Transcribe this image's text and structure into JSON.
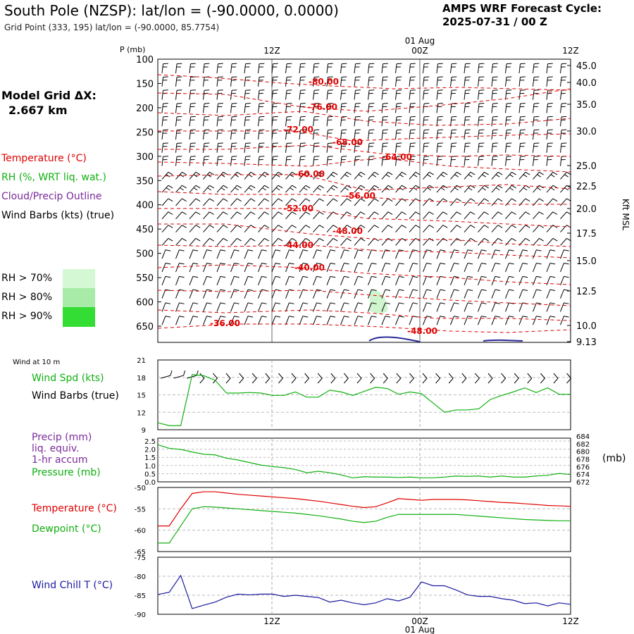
{
  "header": {
    "title": "South Pole (NZSP):  lat/lon = (-90.0000, 0.0000)",
    "subtitle": "Grid Point (333, 195) lat/lon = (-90.0000, 85.7754)",
    "cycle_label": "AMPS WRF Forecast Cycle:",
    "cycle_value": "2025-07-31 / 00  Z"
  },
  "side": {
    "grid_label": "Model Grid ΔX:",
    "grid_value": "2.667 km",
    "legend": [
      {
        "text": "Temperature (°C)",
        "color": "#e00000"
      },
      {
        "text": "RH (%, WRT liq. wat.)",
        "color": "#10b010"
      },
      {
        "text": "Cloud/Precip Outline",
        "color": "#7a2a9a"
      },
      {
        "text": "Wind Barbs (kts) (true)",
        "color": "#000000"
      }
    ],
    "rh_boxes": [
      {
        "label": "RH > 70%",
        "color": "#d4f7d4"
      },
      {
        "label": "RH > 80%",
        "color": "#a8eba8"
      },
      {
        "label": "RH > 90%",
        "color": "#33dd33"
      }
    ],
    "wind10_title": "Wind at 10 m",
    "wind_spd_label": "Wind Spd (kts)",
    "wind_barb_label": "Wind Barbs (true)",
    "precip_label1": "Precip (mm)",
    "precip_label2": "liq. equiv.",
    "precip_label3": "1-hr accum",
    "pressure_label": "Pressure (mb)",
    "pressure_unit": "(mb)",
    "temp_label": "Temperature (°C)",
    "dew_label": "Dewpoint (°C)",
    "chill_label": "Wind Chill T (°C)"
  },
  "chart_data": [
    {
      "type": "line",
      "name": "upper-air cross section",
      "x_ticks_top": [
        "12Z",
        "00Z",
        "12Z"
      ],
      "date_label": "01 Aug",
      "ylabel": "P (mb)",
      "y_ticks": [
        100,
        150,
        200,
        250,
        300,
        350,
        400,
        450,
        500,
        550,
        600,
        650
      ],
      "right_label": "Kft MSL",
      "right_ticks": [
        "45.0",
        "40.0",
        "35.0",
        "30.0",
        "25.0",
        "22.5",
        "20.0",
        "17.5",
        "15.0",
        "12.5",
        "10.0",
        "9.13"
      ],
      "isotherm_labels": [
        "-80.00",
        "-76.00",
        "-72.00",
        "-68.00",
        "-64.00",
        "-60.00",
        "-56.00",
        "-52.00",
        "-48.00",
        "-44.00",
        "-40.00",
        "-36.00",
        "-48.00"
      ]
    },
    {
      "type": "line",
      "name": "Wind Spd (kts)",
      "ylim": [
        9,
        21
      ],
      "y_ticks": [
        9,
        12,
        15,
        18,
        21
      ],
      "x": [
        0,
        1,
        2,
        3,
        4,
        5,
        6,
        7,
        8,
        9,
        10,
        11,
        12,
        13,
        14,
        15,
        16,
        17,
        18,
        19,
        20,
        21,
        22,
        23,
        24,
        25,
        26,
        27,
        28,
        29,
        30,
        31,
        32,
        33,
        34,
        35,
        36
      ],
      "values": [
        10.2,
        9.7,
        9.7,
        18.5,
        18.3,
        17.5,
        15.3,
        15.3,
        15.4,
        15.3,
        14.9,
        14.9,
        15.5,
        14.6,
        14.6,
        15.8,
        15.5,
        14.9,
        15.6,
        16.3,
        16.1,
        15.1,
        15.5,
        15.2,
        13.6,
        12.0,
        12.4,
        12.4,
        12.6,
        14.2,
        14.9,
        15.5,
        16.2,
        15.4,
        16.2,
        15.1,
        15.1
      ]
    },
    {
      "type": "line",
      "name": "Pressure (mb)",
      "left_ticks": [
        "0.0",
        "0.5",
        "1.0",
        "1.5",
        "2.0",
        "2.5"
      ],
      "right_ticks": [
        "672",
        "674",
        "676",
        "678",
        "680",
        "682",
        "684"
      ],
      "ylim": [
        672,
        684
      ],
      "x": [
        0,
        1,
        2,
        3,
        4,
        5,
        6,
        7,
        8,
        9,
        10,
        11,
        12,
        13,
        14,
        15,
        16,
        17,
        18,
        19,
        20,
        21,
        22,
        23,
        24,
        25,
        26,
        27,
        28,
        29,
        30,
        31,
        32,
        33,
        34,
        35,
        36
      ],
      "values": [
        682.2,
        681.2,
        680.9,
        680.2,
        679.6,
        679.4,
        678.5,
        678.0,
        677.3,
        676.6,
        676.2,
        675.9,
        675.4,
        674.5,
        674.9,
        674.5,
        673.9,
        673.1,
        673.4,
        673.3,
        673.3,
        673.2,
        673.3,
        673.1,
        673.1,
        673.3,
        673.6,
        673.5,
        673.6,
        673.3,
        673.6,
        673.3,
        673.3,
        673.6,
        673.8,
        674.3,
        674.0
      ]
    },
    {
      "type": "line",
      "name": "Temperature / Dewpoint",
      "ylim": [
        -65,
        -50
      ],
      "y_ticks": [
        -50,
        -55,
        -60,
        -65
      ],
      "x": [
        0,
        1,
        2,
        3,
        4,
        5,
        6,
        7,
        8,
        9,
        10,
        11,
        12,
        13,
        14,
        15,
        16,
        17,
        18,
        19,
        20,
        21,
        22,
        23,
        24,
        25,
        26,
        27,
        28,
        29,
        30,
        31,
        32,
        33,
        34,
        35,
        36
      ],
      "series": [
        {
          "name": "Temperature (°C)",
          "color": "#e00000",
          "values": [
            -59.0,
            -59.0,
            -55.0,
            -51.4,
            -51.0,
            -51.0,
            -51.3,
            -51.6,
            -51.8,
            -52.0,
            -52.2,
            -52.4,
            -52.6,
            -52.9,
            -53.2,
            -53.6,
            -54.0,
            -54.4,
            -54.7,
            -54.5,
            -53.6,
            -52.6,
            -52.8,
            -53.0,
            -52.8,
            -52.8,
            -52.8,
            -52.9,
            -53.1,
            -53.3,
            -53.5,
            -53.6,
            -53.8,
            -54.0,
            -54.2,
            -54.3,
            -54.4
          ]
        },
        {
          "name": "Dewpoint (°C)",
          "color": "#10b010",
          "values": [
            -63.0,
            -63.0,
            -59.0,
            -55.0,
            -54.5,
            -54.6,
            -54.8,
            -55.0,
            -55.2,
            -55.4,
            -55.6,
            -55.8,
            -56.0,
            -56.3,
            -56.6,
            -57.0,
            -57.4,
            -57.9,
            -58.2,
            -57.9,
            -57.0,
            -56.3,
            -56.3,
            -56.3,
            -56.3,
            -56.3,
            -56.3,
            -56.5,
            -56.7,
            -56.9,
            -57.1,
            -57.3,
            -57.5,
            -57.6,
            -57.7,
            -57.8,
            -57.8
          ]
        }
      ]
    },
    {
      "type": "line",
      "name": "Wind Chill T (°C)",
      "ylim": [
        -90,
        -75
      ],
      "y_ticks": [
        -75,
        -80,
        -85,
        -90
      ],
      "x_ticks_bottom": [
        "12Z",
        "00Z",
        "12Z"
      ],
      "x": [
        0,
        1,
        2,
        3,
        4,
        5,
        6,
        7,
        8,
        9,
        10,
        11,
        12,
        13,
        14,
        15,
        16,
        17,
        18,
        19,
        20,
        21,
        22,
        23,
        24,
        25,
        26,
        27,
        28,
        29,
        30,
        31,
        32,
        33,
        34,
        35,
        36
      ],
      "values": [
        -84.8,
        -84.2,
        -79.8,
        -88.5,
        -87.6,
        -86.8,
        -85.5,
        -84.7,
        -84.9,
        -84.7,
        -84.7,
        -85.3,
        -85.0,
        -85.3,
        -85.6,
        -86.8,
        -86.3,
        -87.0,
        -87.5,
        -87.0,
        -85.9,
        -86.5,
        -85.5,
        -81.5,
        -82.5,
        -82.5,
        -83.6,
        -84.9,
        -85.3,
        -85.3,
        -85.9,
        -86.3,
        -87.2,
        -87.0,
        -87.8,
        -87.0,
        -87.4
      ]
    }
  ]
}
